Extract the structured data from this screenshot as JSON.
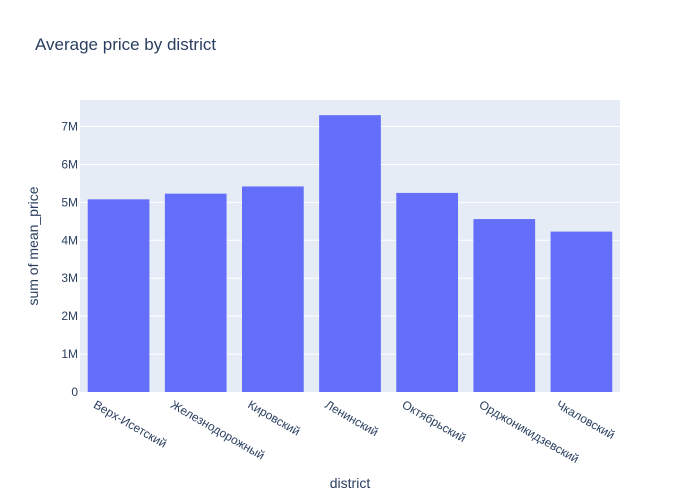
{
  "chart_data": {
    "type": "bar",
    "title": "Average price by district",
    "xlabel": "district",
    "ylabel": "sum of mean_price",
    "categories": [
      "Верх-Исетский",
      "Железнодорожный",
      "Кировский",
      "Ленинский",
      "Октябрьский",
      "Орджоникидзевский",
      "Чкаловский"
    ],
    "values": [
      5080000,
      5230000,
      5420000,
      7300000,
      5250000,
      4560000,
      4230000
    ],
    "ylim": [
      0,
      7700000
    ],
    "yticks": [
      0,
      1000000,
      2000000,
      3000000,
      4000000,
      5000000,
      6000000,
      7000000
    ],
    "ytick_labels": [
      "0",
      "1M",
      "2M",
      "3M",
      "4M",
      "5M",
      "6M",
      "7M"
    ],
    "grid": true,
    "colors": {
      "bar": "#636efa",
      "plot_bg": "#e5ecf6",
      "grid": "#ffffff",
      "text": "#2a3f5f"
    }
  }
}
